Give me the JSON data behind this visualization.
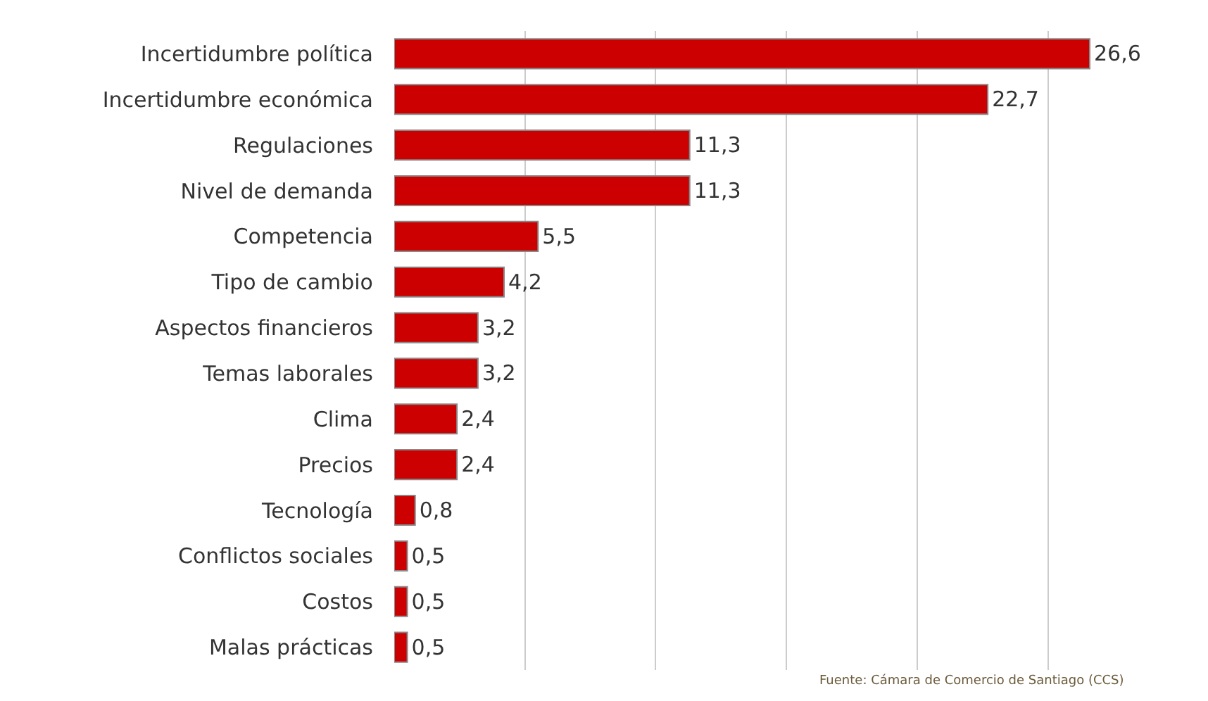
{
  "chart_data": {
    "type": "bar",
    "orientation": "horizontal",
    "categories": [
      "Incertidumbre política",
      "Incertidumbre económica",
      "Regulaciones",
      "Nivel de demanda",
      "Competencia",
      "Tipo de cambio",
      "Aspectos financieros",
      "Temas laborales",
      "Clima",
      "Precios",
      "Tecnología",
      "Conflictos sociales",
      "Costos",
      "Malas prácticas"
    ],
    "values": [
      26.6,
      22.7,
      11.3,
      11.3,
      5.5,
      4.2,
      3.2,
      3.2,
      2.4,
      2.4,
      0.8,
      0.5,
      0.5,
      0.5
    ],
    "value_labels": [
      "26,6",
      "22,7",
      "11,3",
      "11,3",
      "5,5",
      "4,2",
      "3,2",
      "3,2",
      "2,4",
      "2,4",
      "0,8",
      "0,5",
      "0,5",
      "0,5"
    ],
    "color": "#cc0000",
    "tick_labels": "y",
    "grid": "x",
    "legend": false,
    "annotations": [
      "Fuente: Cámara de Comercio de Santiago (CCS)"
    ]
  }
}
